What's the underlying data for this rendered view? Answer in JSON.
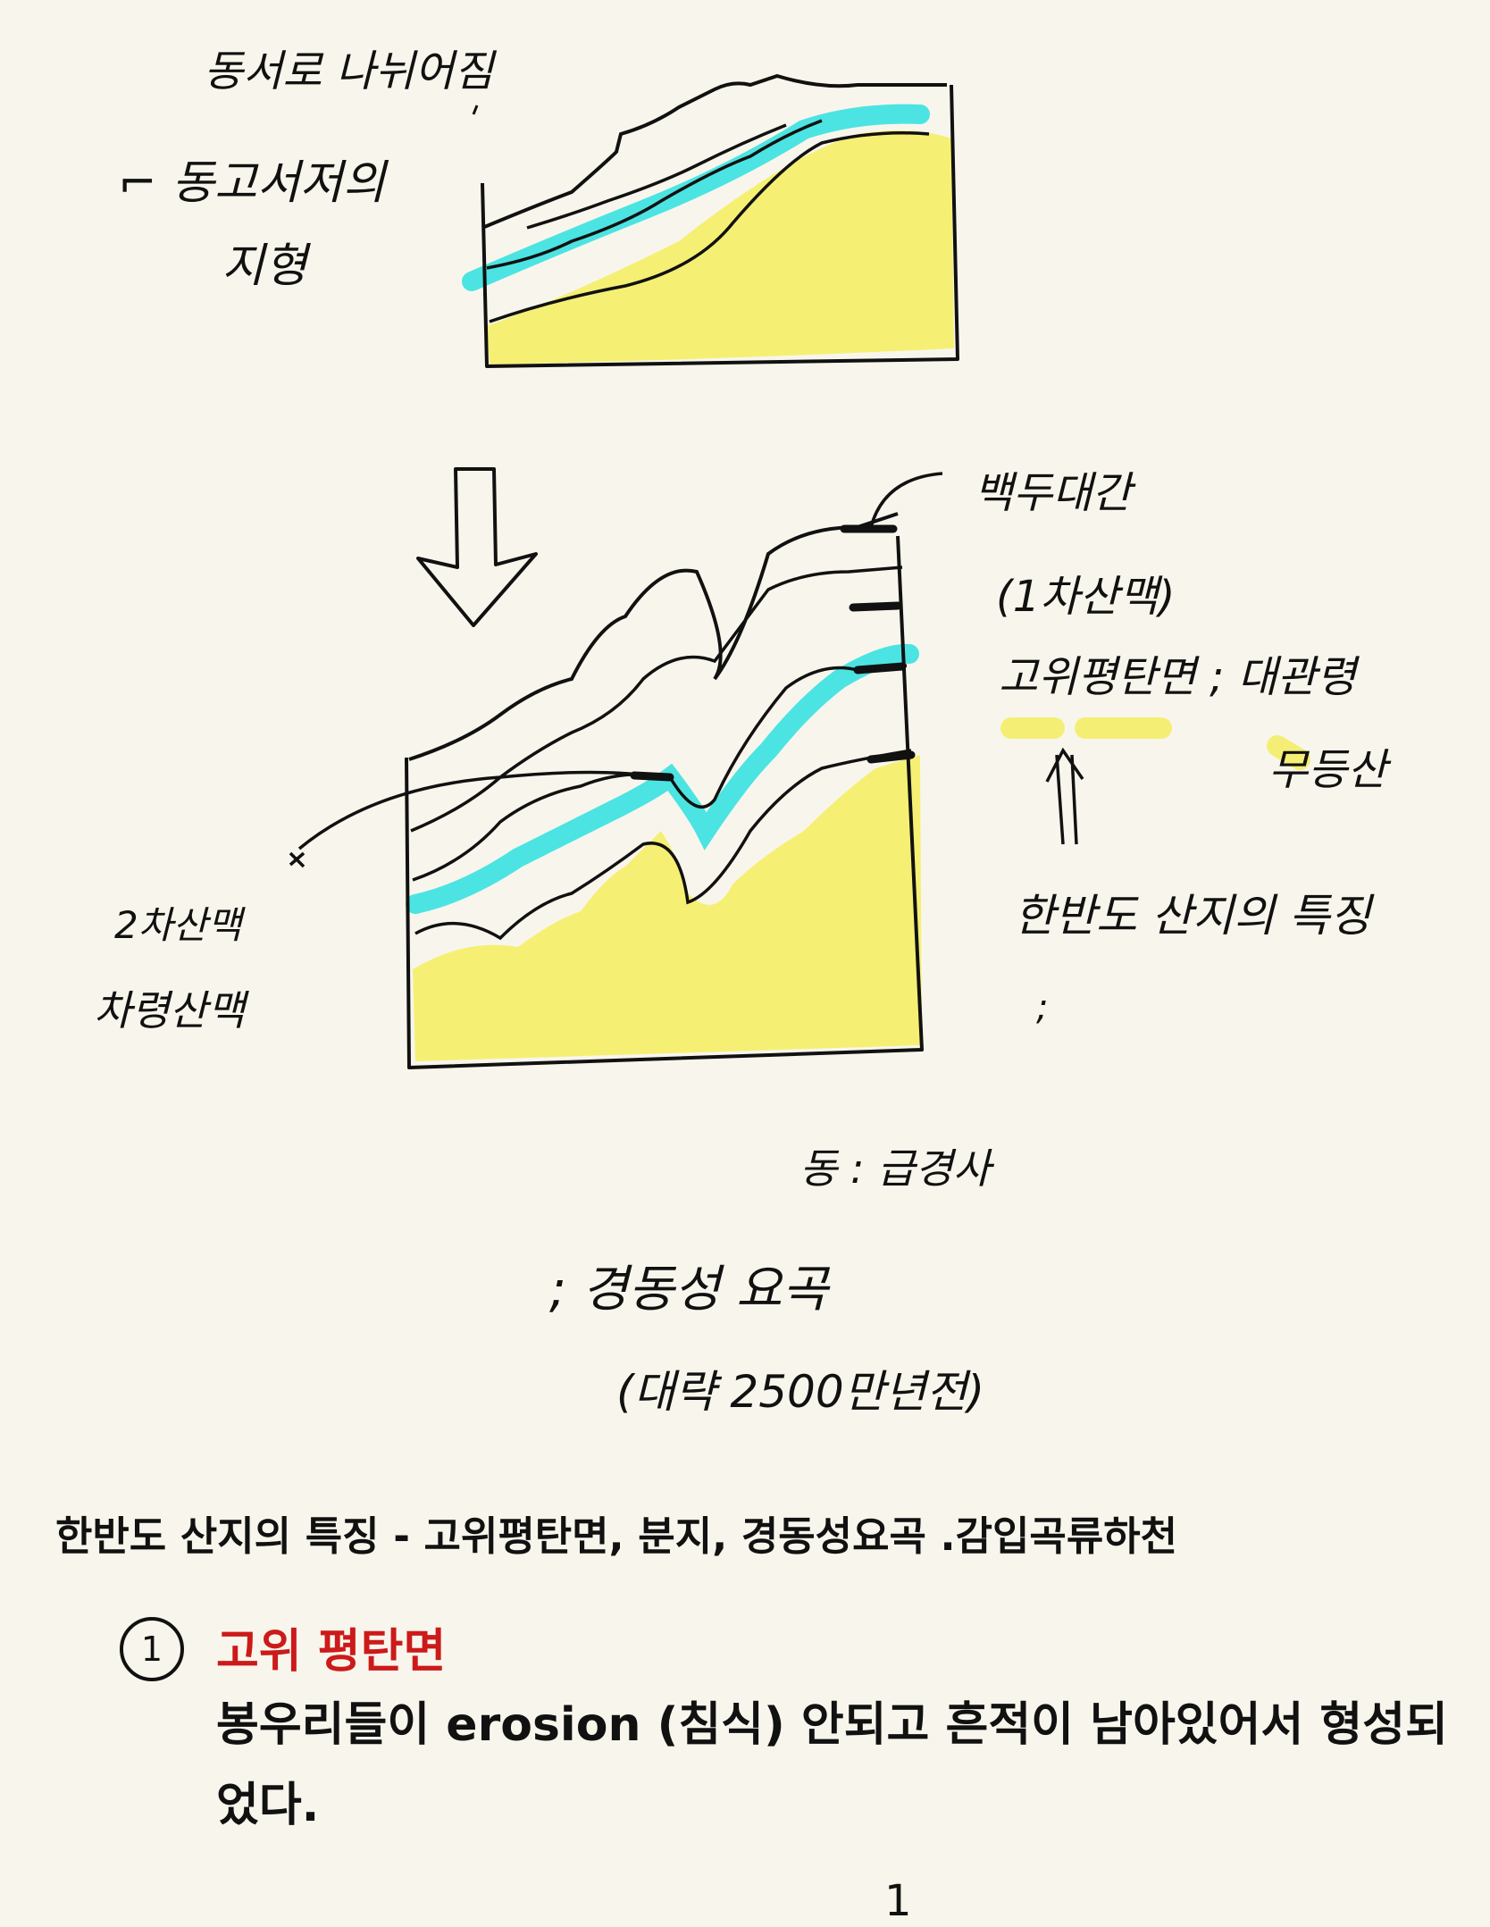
{
  "handwritten": {
    "top_caption": "동서로 나뉘어짐",
    "terrain_label_1": "동고서저의",
    "terrain_label_2": "지형",
    "range_1_name": "백두대간",
    "range_1_note": "(1차산맥)",
    "plateau_label": "고위평탄면",
    "plateau_place_1": "대관령",
    "plateau_place_2": "무등산",
    "feature_label": "한반도 산지의 특징",
    "range_2_name": "2차산맥",
    "range_2_alt": "차령산맥",
    "east_note": "동 : 급경사",
    "tilt_label": "경동성 요곡",
    "tilt_time": "(대략 2500만년전)"
  },
  "title": "한반도 산지의 특징 - 고위평탄면, 분지, 경동성요곡 .감입곡류하천",
  "item": {
    "number": "1",
    "heading": "고위 평탄면",
    "body": "봉우리들이 erosion (침식) 안되고 흔적이 남아있어서 형성되었다."
  },
  "page_number": "1",
  "colors": {
    "background": "#f8f6ec",
    "highlight_yellow": "#f4ef6e",
    "highlight_cyan": "#38e2e2",
    "heading_red": "#cc1a1a"
  }
}
